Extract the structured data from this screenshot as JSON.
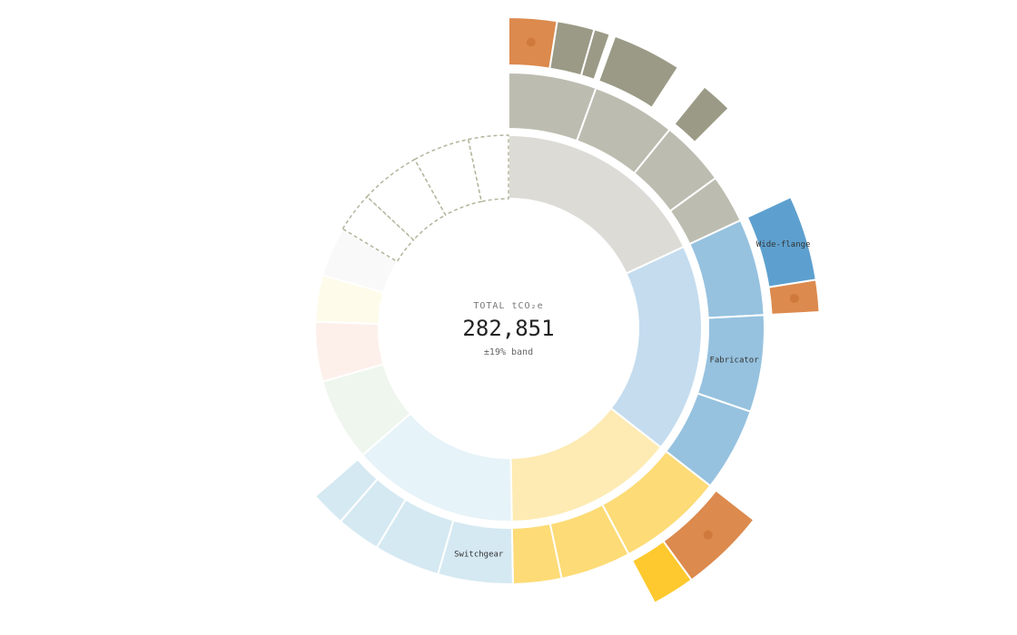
{
  "chart_data": {
    "type": "sunburst",
    "center": {
      "label": "TOTAL tCO₂e",
      "total": "282,851",
      "band": "±19% band"
    },
    "nodes": [
      {
        "value": 51025,
        "color": "#dcdbd6",
        "children": [
          {
            "value": 15700,
            "color": "#bcbcb0",
            "children": [
              {
                "value": 7065,
                "color": "#dc8a4e",
                "marker": true
              },
              {
                "value": 5495,
                "color": "#9b9a86"
              },
              {
                "value": 2355,
                "color": "#9b9a86"
              }
            ]
          },
          {
            "value": 14915,
            "color": "#bcbcb0",
            "children": [
              {
                "value": 10205,
                "color": "#9b9a86"
              }
            ]
          },
          {
            "value": 11775,
            "color": "#bcbcb0",
            "children": [
              {
                "value": 4710,
                "color": "#9b9a86"
              }
            ]
          },
          {
            "value": 8635,
            "color": "#bcbcb0"
          }
        ]
      },
      {
        "value": 49455,
        "color": "#c4dcee",
        "children": [
          {
            "value": 17270,
            "color": "#96c2df",
            "children": [
              {
                "value": 12560,
                "color": "#5da0cf",
                "label": "Wide-flange"
              },
              {
                "value": 4710,
                "color": "#dc8a4e",
                "marker": true
              }
            ]
          },
          {
            "value": 17270,
            "color": "#96c2df",
            "label": "Fabricator"
          },
          {
            "value": 14915,
            "color": "#96c2df"
          }
        ]
      },
      {
        "value": 40035,
        "color": "#fdebb3",
        "children": [
          {
            "value": 18840,
            "color": "#fddb76",
            "children": [
              {
                "value": 12560,
                "color": "#dc8a4e",
                "marker": true
              },
              {
                "value": 6280,
                "color": "#fec92e"
              }
            ]
          },
          {
            "value": 12560,
            "color": "#fddb76"
          },
          {
            "value": 8635,
            "color": "#fddb76"
          }
        ]
      },
      {
        "value": 39250,
        "color": "#e6f3f8",
        "children": [
          {
            "value": 13345,
            "color": "#d5e9f2",
            "label": "Switchgear"
          },
          {
            "value": 11775,
            "color": "#d5e9f2"
          },
          {
            "value": 7850,
            "color": "#d5e9f2"
          },
          {
            "value": 6280,
            "color": "#d5e9f2"
          }
        ]
      },
      {
        "value": 19625,
        "color": "#eff6ee"
      },
      {
        "value": 14130,
        "color": "#fdf0eb"
      },
      {
        "value": 10990,
        "color": "#fefbea"
      },
      {
        "value": 11775,
        "color": "#f9f9f9"
      },
      {
        "value": 9420,
        "color": "#ffffff",
        "dashed": true
      },
      {
        "value": 14130,
        "color": "#ffffff",
        "dashed": true
      },
      {
        "value": 13345,
        "color": "#ffffff",
        "dashed": true
      },
      {
        "value": 9420,
        "color": "#ffffff",
        "dashed": true
      }
    ]
  }
}
